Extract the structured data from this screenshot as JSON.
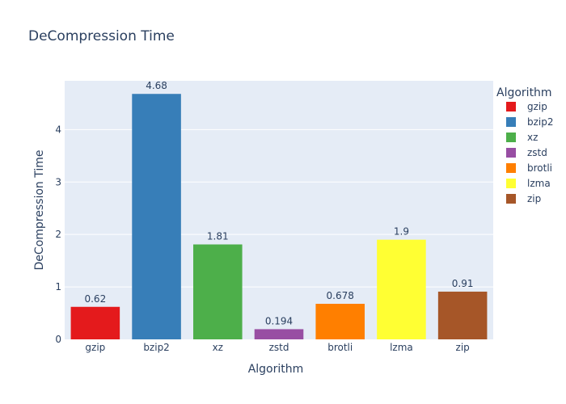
{
  "chart_data": {
    "type": "bar",
    "title": "DeCompression Time",
    "xlabel": "Algorithm",
    "ylabel": "DeCompression Time",
    "categories": [
      "gzip",
      "bzip2",
      "xz",
      "zstd",
      "brotli",
      "lzma",
      "zip"
    ],
    "values": [
      0.62,
      4.68,
      1.81,
      0.194,
      0.678,
      1.9,
      0.91
    ],
    "value_labels": [
      "0.62",
      "4.68",
      "1.81",
      "0.194",
      "0.678",
      "1.9",
      "0.91"
    ],
    "colors": [
      "#e41a1c",
      "#377eb8",
      "#4daf4a",
      "#984ea3",
      "#ff7f00",
      "#ffff33",
      "#a65628"
    ],
    "ylim": [
      0,
      4.93
    ],
    "yticks": [
      0,
      1,
      2,
      3,
      4
    ],
    "grid": true,
    "plot_background": "#e5ecf6",
    "legend": {
      "title": "Algorithm",
      "placement": "right",
      "entries": [
        "gzip",
        "bzip2",
        "xz",
        "zstd",
        "brotli",
        "lzma",
        "zip"
      ]
    }
  }
}
